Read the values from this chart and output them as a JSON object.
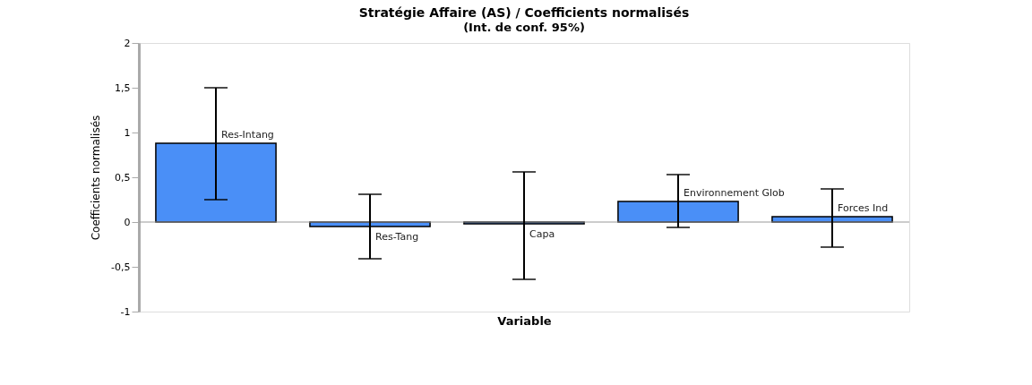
{
  "chart_data": {
    "type": "bar",
    "title": "Stratégie Affaire (AS) / Coefficients normalisés",
    "subtitle": "(Int. de conf. 95%)",
    "xlabel": "Variable",
    "ylabel": "Coefficients normalisés",
    "categories": [
      "Res-Intang",
      "Res-Tang",
      "Capa",
      "Environnement Glob",
      "Forces Ind"
    ],
    "values": [
      0.88,
      -0.05,
      -0.02,
      0.23,
      0.06
    ],
    "errors": [
      [
        0.25,
        1.5
      ],
      [
        -0.41,
        0.31
      ],
      [
        -0.64,
        0.56
      ],
      [
        -0.06,
        0.53
      ],
      [
        -0.28,
        0.37
      ]
    ],
    "color": "#4a8ff7",
    "ylim": [
      -1,
      2
    ],
    "yticks": [
      -1,
      {
        "value": -0.5,
        "label": "-0,5"
      },
      0,
      {
        "value": 0.5,
        "label": "0,5"
      },
      1,
      {
        "value": 1.5,
        "label": "1,5"
      },
      2
    ],
    "tick_labels": "y",
    "grid": false
  }
}
